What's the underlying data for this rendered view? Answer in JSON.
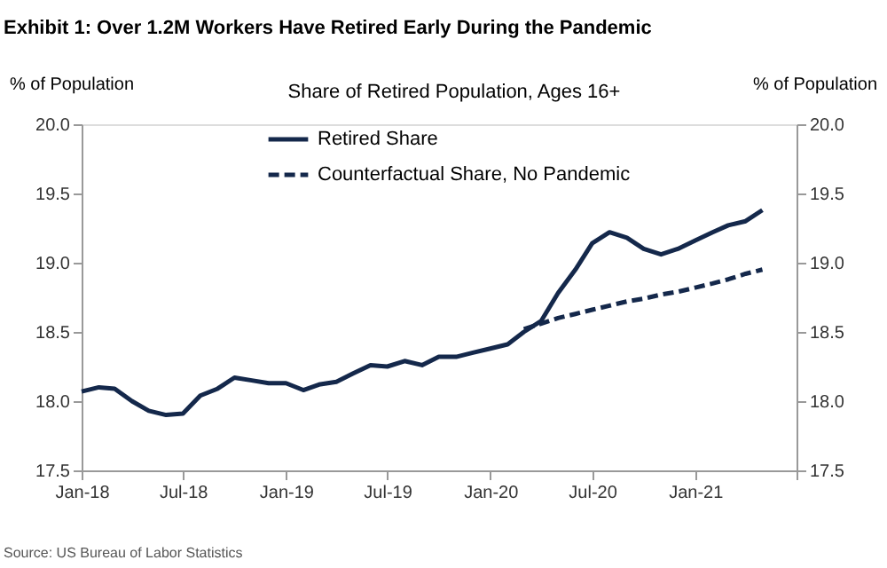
{
  "chart_data": {
    "type": "line",
    "title": "Exhibit 1: Over 1.2M Workers Have Retired Early During the Pandemic",
    "subtitle": "Share of Retired Population, Ages 16+",
    "ylabel": "% of Population",
    "y2label": "% of Population",
    "annotations": [
      "Source: US Bureau of Labor Statistics"
    ],
    "x": [
      "2018-01",
      "2018-02",
      "2018-03",
      "2018-04",
      "2018-05",
      "2018-06",
      "2018-07",
      "2018-08",
      "2018-09",
      "2018-10",
      "2018-11",
      "2018-12",
      "2019-01",
      "2019-02",
      "2019-03",
      "2019-04",
      "2019-05",
      "2019-06",
      "2019-07",
      "2019-08",
      "2019-09",
      "2019-10",
      "2019-11",
      "2019-12",
      "2020-01",
      "2020-02",
      "2020-03",
      "2020-04",
      "2020-05",
      "2020-06",
      "2020-07",
      "2020-08",
      "2020-09",
      "2020-10",
      "2020-11",
      "2020-12",
      "2021-01",
      "2021-02",
      "2021-03",
      "2021-04",
      "2021-05"
    ],
    "series": [
      {
        "name": "Retired Share",
        "color": "#14284b",
        "line_style": "solid",
        "values": [
          18.07,
          18.1,
          18.09,
          18.0,
          17.93,
          17.9,
          17.91,
          18.04,
          18.09,
          18.17,
          18.15,
          18.13,
          18.13,
          18.08,
          18.12,
          18.14,
          18.2,
          18.26,
          18.25,
          18.29,
          18.26,
          18.32,
          18.32,
          18.35,
          18.38,
          18.41,
          18.5,
          18.58,
          18.78,
          18.95,
          19.14,
          19.22,
          19.18,
          19.1,
          19.06,
          19.1,
          19.16,
          19.22,
          19.27,
          19.3,
          19.38
        ]
      },
      {
        "name": "Counterfactual Share, No Pandemic",
        "color": "#14284b",
        "line_style": "dashed",
        "x": [
          "2020-03",
          "2020-04",
          "2020-05",
          "2020-06",
          "2020-07",
          "2020-08",
          "2020-09",
          "2020-10",
          "2020-11",
          "2020-12",
          "2021-01",
          "2021-02",
          "2021-03",
          "2021-04",
          "2021-05"
        ],
        "values": [
          18.52,
          18.56,
          18.6,
          18.63,
          18.66,
          18.69,
          18.72,
          18.74,
          18.77,
          18.79,
          18.82,
          18.85,
          18.88,
          18.92,
          18.95
        ]
      }
    ],
    "xlim": [
      "2018-01",
      "2021-07"
    ],
    "xticks": [
      {
        "value": "2018-01",
        "label": "Jan-18"
      },
      {
        "value": "2018-07",
        "label": "Jul-18"
      },
      {
        "value": "2019-01",
        "label": "Jan-19"
      },
      {
        "value": "2019-07",
        "label": "Jul-19"
      },
      {
        "value": "2020-01",
        "label": "Jan-20"
      },
      {
        "value": "2020-07",
        "label": "Jul-20"
      },
      {
        "value": "2021-01",
        "label": "Jan-21"
      },
      {
        "value": "2021-07",
        "label": null
      }
    ],
    "ylim": [
      17.5,
      20.0
    ],
    "yticks": [
      {
        "value": 17.5,
        "label": "17.5"
      },
      {
        "value": 18.0,
        "label": "18.0"
      },
      {
        "value": 18.5,
        "label": "18.5"
      },
      {
        "value": 19.0,
        "label": "19.0"
      },
      {
        "value": 19.5,
        "label": "19.5"
      },
      {
        "value": 20.0,
        "label": "20.0"
      }
    ],
    "y2lim": [
      17.5,
      20.0
    ],
    "y2ticks": [
      {
        "value": 17.5,
        "label": "17.5"
      },
      {
        "value": 18.0,
        "label": "18.0"
      },
      {
        "value": 18.5,
        "label": "18.5"
      },
      {
        "value": 19.0,
        "label": "19.0"
      },
      {
        "value": 19.5,
        "label": "19.5"
      },
      {
        "value": 20.0,
        "label": "20.0"
      }
    ],
    "grid": false,
    "legend": "top",
    "marker": "none"
  }
}
